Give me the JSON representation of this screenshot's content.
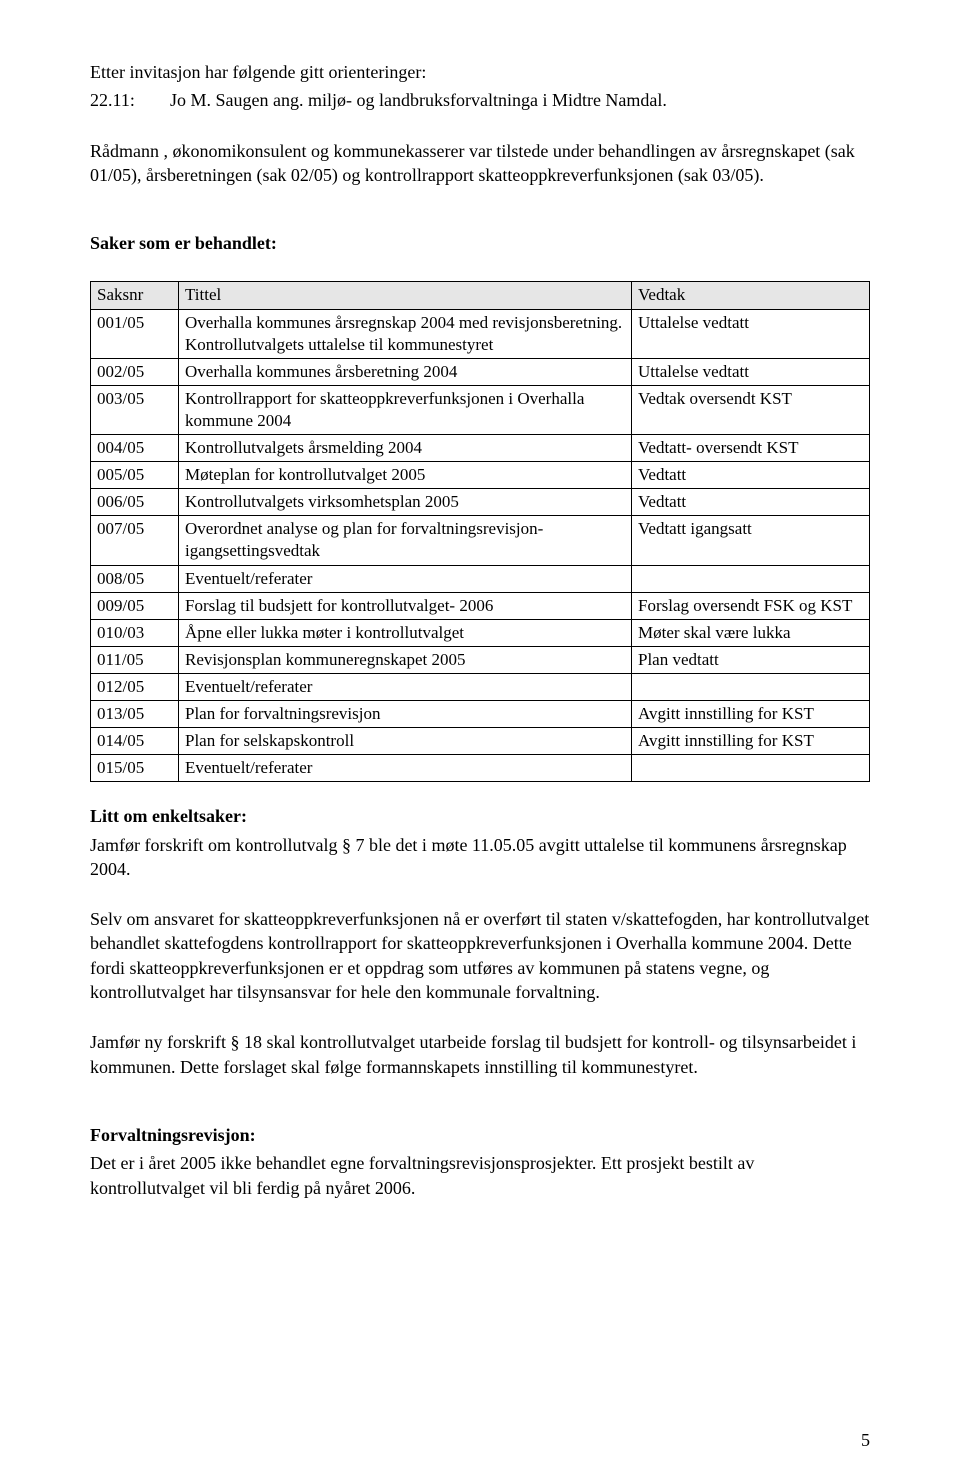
{
  "intro": {
    "line1": "Etter invitasjon har følgende gitt orienteringer:",
    "meeting_date": "22.11:",
    "meeting_text": "Jo M. Saugen ang. miljø- og landbruksforvaltninga i Midtre Namdal."
  },
  "radmann_para": "Rådmann , økonomikonsulent og kommunekasserer var tilstede under behandlingen av årsregnskapet (sak 01/05), årsberetningen (sak 02/05) og kontrollrapport skatteoppkreverfunksjonen (sak 03/05).",
  "saker_heading": "Saker som er behandlet:",
  "table": {
    "headers": [
      "Saksnr",
      "Tittel",
      "Vedtak"
    ],
    "rows": [
      [
        "001/05",
        "Overhalla kommunes årsregnskap 2004 med revisjonsberetning. Kontrollutvalgets uttalelse til kommunestyret",
        "Uttalelse vedtatt"
      ],
      [
        "002/05",
        "Overhalla kommunes årsberetning 2004",
        "Uttalelse vedtatt"
      ],
      [
        "003/05",
        "Kontrollrapport for skatteoppkreverfunksjonen i Overhalla kommune 2004",
        "Vedtak oversendt KST"
      ],
      [
        "004/05",
        "Kontrollutvalgets årsmelding 2004",
        "Vedtatt- oversendt KST"
      ],
      [
        "005/05",
        "Møteplan for kontrollutvalget 2005",
        "Vedtatt"
      ],
      [
        "006/05",
        "Kontrollutvalgets virksomhetsplan 2005",
        "Vedtatt"
      ],
      [
        "007/05",
        "Overordnet analyse og plan for forvaltningsrevisjon- igangsettingsvedtak",
        "Vedtatt igangsatt"
      ],
      [
        "008/05",
        "Eventuelt/referater",
        ""
      ],
      [
        "009/05",
        "Forslag til budsjett for kontrollutvalget- 2006",
        "Forslag oversendt FSK og KST"
      ],
      [
        "010/03",
        "Åpne eller lukka møter i kontrollutvalget",
        "Møter skal være lukka"
      ],
      [
        "011/05",
        "Revisjonsplan kommuneregnskapet 2005",
        "Plan vedtatt"
      ],
      [
        "012/05",
        "Eventuelt/referater",
        ""
      ],
      [
        "013/05",
        "Plan for forvaltningsrevisjon",
        "Avgitt innstilling for KST"
      ],
      [
        "014/05",
        "Plan for selskapskontroll",
        "Avgitt innstilling for KST"
      ],
      [
        "015/05",
        "Eventuelt/referater",
        ""
      ]
    ]
  },
  "litt_heading": "Litt om enkeltsaker:",
  "litt_para": "Jamfør forskrift om kontrollutvalg § 7 ble det i møte 11.05.05 avgitt uttalelse til kommunens årsregnskap 2004.",
  "selvom_para": "Selv om ansvaret for skatteoppkreverfunksjonen nå er overført til staten v/skattefogden, har kontrollutvalget behandlet skattefogdens kontrollrapport for skatteoppkreverfunksjonen i Overhalla kommune 2004. Dette fordi skatteoppkreverfunksjonen er et oppdrag som utføres av kommunen på statens vegne, og kontrollutvalget har tilsynsansvar for hele den kommunale forvaltning.",
  "jamfor_para": "Jamfør ny forskrift § 18 skal kontrollutvalget utarbeide forslag til budsjett for kontroll- og tilsynsarbeidet i kommunen. Dette forslaget skal følge formannskapets innstilling til kommunestyret.",
  "forvaltning_heading": "Forvaltningsrevisjon:",
  "forvaltning_para": "Det er i året 2005 ikke behandlet egne forvaltningsrevisjonsprosjekter. Ett prosjekt bestilt av kontrollutvalget vil bli ferdig på nyåret 2006.",
  "page_number": "5"
}
